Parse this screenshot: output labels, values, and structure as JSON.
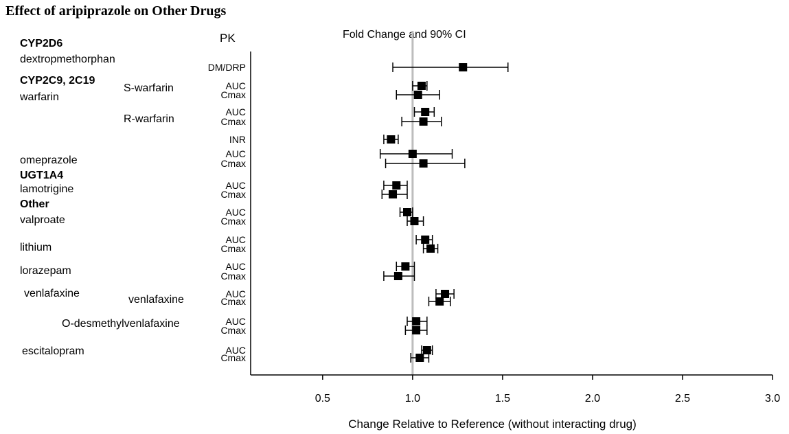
{
  "chart_data": {
    "type": "forest",
    "title": "Effect of aripiprazole on Other Drugs",
    "pk_header": "PK",
    "ci_header": "Fold Change and 90% CI",
    "xlabel": "Change Relative to Reference (without interacting drug)",
    "xlim": [
      0.1,
      3.0
    ],
    "xticks": [
      0.5,
      1.0,
      1.5,
      2.0,
      2.5,
      3.0
    ],
    "xtick_labels": [
      "0.5",
      "1.0",
      "1.5",
      "2.0",
      "2.5",
      "3.0"
    ],
    "reference_line": 1.0,
    "groups": [
      {
        "text": "CYP2D6",
        "bold": true
      },
      {
        "text": "dextropmethorphan",
        "bold": false
      },
      {
        "text": "CYP2C9, 2C19",
        "bold": true
      },
      {
        "text": "warfarin",
        "bold": false
      },
      {
        "text": "S-warfarin",
        "bold": false
      },
      {
        "text": "R-warfarin",
        "bold": false
      },
      {
        "text": "omeprazole",
        "bold": false
      },
      {
        "text": "UGT1A4",
        "bold": true
      },
      {
        "text": "lamotrigine",
        "bold": false
      },
      {
        "text": "Other",
        "bold": true
      },
      {
        "text": "valproate",
        "bold": false
      },
      {
        "text": "lithium",
        "bold": false
      },
      {
        "text": "lorazepam",
        "bold": false
      },
      {
        "text": "venlafaxine",
        "bold": false
      },
      {
        "text": "venlafaxine",
        "bold": false
      },
      {
        "text": "O-desmethylvenlafaxine",
        "bold": false
      },
      {
        "text": "escitalopram",
        "bold": false
      }
    ],
    "rows": [
      {
        "pk": "DM/DRP",
        "estimate": 1.28,
        "lower": 0.89,
        "upper": 1.53
      },
      {
        "pk": "AUC",
        "estimate": 1.05,
        "lower": 1.0,
        "upper": 1.08
      },
      {
        "pk": "Cmax",
        "estimate": 1.03,
        "lower": 0.91,
        "upper": 1.15
      },
      {
        "pk": "AUC",
        "estimate": 1.07,
        "lower": 1.01,
        "upper": 1.12
      },
      {
        "pk": "Cmax",
        "estimate": 1.06,
        "lower": 0.94,
        "upper": 1.16
      },
      {
        "pk": "INR",
        "estimate": 0.88,
        "lower": 0.84,
        "upper": 0.92
      },
      {
        "pk": "AUC",
        "estimate": 1.0,
        "lower": 0.82,
        "upper": 1.22
      },
      {
        "pk": "Cmax",
        "estimate": 1.06,
        "lower": 0.85,
        "upper": 1.29
      },
      {
        "pk": "AUC",
        "estimate": 0.91,
        "lower": 0.84,
        "upper": 0.97
      },
      {
        "pk": "Cmax",
        "estimate": 0.89,
        "lower": 0.83,
        "upper": 0.97
      },
      {
        "pk": "AUC",
        "estimate": 0.97,
        "lower": 0.93,
        "upper": 1.0
      },
      {
        "pk": "Cmax",
        "estimate": 1.01,
        "lower": 0.97,
        "upper": 1.06
      },
      {
        "pk": "AUC",
        "estimate": 1.07,
        "lower": 1.02,
        "upper": 1.11
      },
      {
        "pk": "Cmax",
        "estimate": 1.1,
        "lower": 1.06,
        "upper": 1.14
      },
      {
        "pk": "AUC",
        "estimate": 0.96,
        "lower": 0.91,
        "upper": 1.01
      },
      {
        "pk": "Cmax",
        "estimate": 0.92,
        "lower": 0.84,
        "upper": 1.01
      },
      {
        "pk": "AUC",
        "estimate": 1.18,
        "lower": 1.13,
        "upper": 1.23
      },
      {
        "pk": "Cmax",
        "estimate": 1.15,
        "lower": 1.09,
        "upper": 1.21
      },
      {
        "pk": "AUC",
        "estimate": 1.02,
        "lower": 0.97,
        "upper": 1.08
      },
      {
        "pk": "Cmax",
        "estimate": 1.02,
        "lower": 0.96,
        "upper": 1.08
      },
      {
        "pk": "AUC",
        "estimate": 1.08,
        "lower": 1.05,
        "upper": 1.11
      },
      {
        "pk": "Cmax",
        "estimate": 1.04,
        "lower": 0.99,
        "upper": 1.09
      }
    ]
  }
}
